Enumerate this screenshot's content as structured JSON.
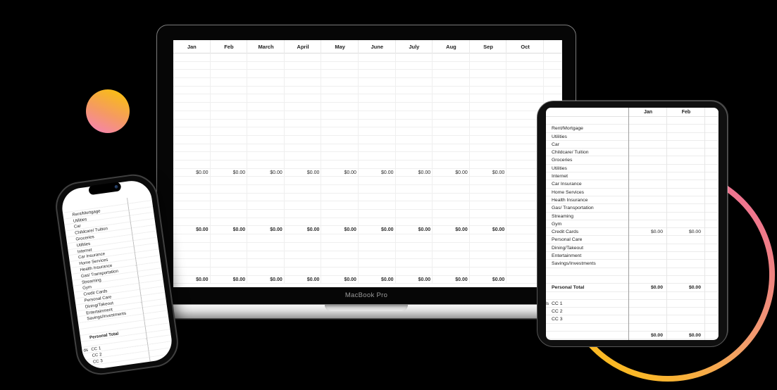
{
  "devices": {
    "laptop": {
      "brand_label": "MacBook Pro"
    },
    "tablet": {},
    "phone": {}
  },
  "sheet": {
    "value_text": "$0.00",
    "laptop_months": [
      "Jan",
      "Feb",
      "March",
      "April",
      "May",
      "June",
      "July",
      "Aug",
      "Sep",
      "Oct"
    ],
    "tablet_months": [
      "Jan",
      "Feb"
    ],
    "value_month_count": 9,
    "rows": [
      {
        "label": ""
      },
      {
        "label": "Rent/Mortgage"
      },
      {
        "label": "Utilities"
      },
      {
        "label": "Car"
      },
      {
        "label": "Childcare/ Tuition"
      },
      {
        "label": "Groceries"
      },
      {
        "label": "Utilities"
      },
      {
        "label": "Internet"
      },
      {
        "label": "Car Insurance"
      },
      {
        "label": "Home Services"
      },
      {
        "label": "Health Insurance"
      },
      {
        "label": "Gas/ Transportation"
      },
      {
        "label": "Streaming"
      },
      {
        "label": "Gym"
      },
      {
        "label": "Credit Cards",
        "values": true,
        "bold_values": false
      },
      {
        "label": "Personal Care"
      },
      {
        "label": "Dining/Takeout"
      },
      {
        "label": "Entertainment"
      },
      {
        "label": "Savings/Investments"
      },
      {
        "label": ""
      },
      {
        "label": ""
      },
      {
        "label": "Personal Total",
        "bold": true,
        "values": true,
        "bold_values": true
      },
      {
        "label": ""
      },
      {
        "label": "CC 1",
        "section_partial": "ds"
      },
      {
        "label": "CC 2"
      },
      {
        "label": "CC 3"
      },
      {
        "label": ""
      },
      {
        "label": "",
        "values": true,
        "bold_values": true
      }
    ]
  },
  "decor": {
    "background": "#000000",
    "blob_gradient": [
      "#F8BC17",
      "#F584AE"
    ],
    "ring_gradient": [
      "#EE6C96",
      "#F29D6B",
      "#FDC013"
    ]
  }
}
